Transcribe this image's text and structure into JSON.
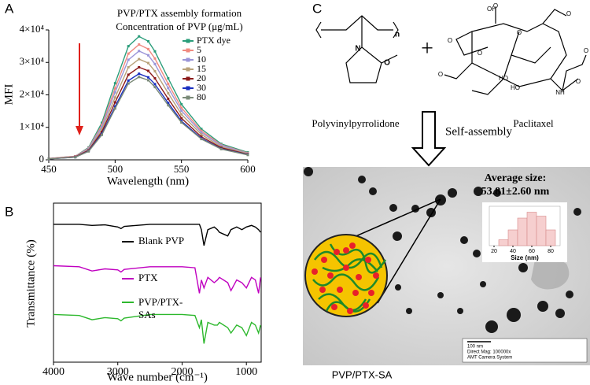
{
  "chart_data": [
    {
      "type": "line",
      "panel_label": "A",
      "title": "PVP/PTX assembly formation",
      "subtitle": "Concentration of PVP (μg/mL)",
      "x_label": "Wavelength (nm)",
      "y_label": "MFI",
      "x": [
        450,
        470,
        480,
        490,
        500,
        510,
        518,
        525,
        530,
        540,
        550,
        565,
        580,
        600
      ],
      "series": [
        {
          "name": "PTX dye",
          "color": "#2a9d7a",
          "values": [
            400,
            1100,
            3800,
            11400,
            23600,
            35000,
            38000,
            36500,
            33400,
            25100,
            17100,
            9500,
            4900,
            2300
          ]
        },
        {
          "name": "5",
          "color": "#f08a80",
          "values": [
            400,
            1100,
            3600,
            10700,
            22000,
            32700,
            35500,
            34100,
            31200,
            23400,
            16000,
            8900,
            4600,
            2100
          ]
        },
        {
          "name": "10",
          "color": "#9a94d8",
          "values": [
            300,
            1000,
            3400,
            10100,
            20800,
            30800,
            33500,
            32200,
            29500,
            22100,
            15100,
            8400,
            4400,
            2000
          ]
        },
        {
          "name": "15",
          "color": "#b8a27a",
          "values": [
            300,
            900,
            3100,
            9300,
            19200,
            28500,
            31000,
            29800,
            27300,
            20500,
            14000,
            7800,
            4000,
            1900
          ]
        },
        {
          "name": "20",
          "color": "#8b1a1a",
          "values": [
            300,
            900,
            2900,
            8600,
            17700,
            26200,
            28500,
            27400,
            25100,
            18800,
            12800,
            7100,
            3700,
            1700
          ]
        },
        {
          "name": "30",
          "color": "#1a2fc0",
          "values": [
            300,
            800,
            2700,
            8000,
            16400,
            24400,
            26500,
            25400,
            23300,
            17500,
            11900,
            6600,
            3400,
            1600
          ]
        },
        {
          "name": "80",
          "color": "#7a8a78",
          "values": [
            300,
            800,
            2600,
            7700,
            15800,
            23500,
            25500,
            24500,
            22400,
            16800,
            11500,
            6400,
            3300,
            1500
          ]
        }
      ],
      "xlim": [
        450,
        600
      ],
      "ylim": [
        0,
        40000
      ],
      "xticks": [
        450,
        500,
        550,
        600
      ],
      "yticks": [
        0,
        {
          "value": 10000,
          "label": "1×10⁴"
        },
        {
          "value": 20000,
          "label": "2×10⁴"
        },
        {
          "value": 30000,
          "label": "3×10⁴"
        },
        {
          "value": 40000,
          "label": "4×10⁴"
        }
      ]
    },
    {
      "type": "line",
      "panel_label": "B",
      "x_label": "Wave number (cm⁻¹)",
      "y_label": "Transmittance (%)",
      "x": [
        4000,
        3600,
        3400,
        3200,
        3000,
        2950,
        2900,
        2500,
        2000,
        1800,
        1730,
        1700,
        1660,
        1600,
        1500,
        1450,
        1420,
        1290,
        1240,
        1150,
        1070,
        1000,
        920,
        860,
        810,
        780
      ],
      "series": [
        {
          "name": "Blank PVP",
          "color": "#000000",
          "values": [
            2.6,
            2.6,
            2.58,
            2.59,
            2.55,
            2.52,
            2.56,
            2.6,
            2.6,
            2.6,
            2.6,
            2.5,
            2.2,
            2.5,
            2.55,
            2.5,
            2.45,
            2.38,
            2.5,
            2.55,
            2.5,
            2.55,
            2.58,
            2.55,
            2.5,
            2.45
          ]
        },
        {
          "name": "PTX",
          "color": "#c000c0",
          "values": [
            1.82,
            1.8,
            1.72,
            1.76,
            1.74,
            1.7,
            1.75,
            1.8,
            1.8,
            1.78,
            1.3,
            1.55,
            1.4,
            1.6,
            1.5,
            1.55,
            1.6,
            1.5,
            1.35,
            1.55,
            1.5,
            1.4,
            1.6,
            1.55,
            1.3,
            1.6
          ]
        },
        {
          "name": "PVP/PTX-SAs",
          "color": "#2db82d",
          "values": [
            0.9,
            0.88,
            0.8,
            0.84,
            0.82,
            0.78,
            0.83,
            0.9,
            0.9,
            0.88,
            0.65,
            0.8,
            0.35,
            0.75,
            0.7,
            0.7,
            0.75,
            0.65,
            0.55,
            0.7,
            0.65,
            0.5,
            0.75,
            0.7,
            0.55,
            0.7
          ]
        }
      ],
      "xlim": [
        4000,
        770
      ],
      "ylim": [
        0,
        3
      ],
      "xticks": [
        4000,
        3000,
        2000,
        1000
      ]
    },
    {
      "type": "histogram",
      "x_label": "Size (nm)",
      "bins": [
        25,
        35,
        45,
        55,
        65,
        75,
        85
      ],
      "values": [
        3,
        8,
        14,
        17,
        15,
        8
      ],
      "color": "#f6cfcf",
      "edge_color": "#d88a8a",
      "xlim": [
        15,
        90
      ],
      "ylim": [
        0,
        20
      ],
      "xticks": [
        20,
        40,
        60,
        80
      ]
    }
  ],
  "panel_c": {
    "label": "C",
    "polymer_name": "Polyvinylpyrrolidone",
    "drug_name": "Paclitaxel",
    "polymer_atoms": [
      "n",
      "N",
      "O"
    ],
    "drug_atoms": [
      "O",
      "O",
      "O",
      "OH",
      "HO",
      "O",
      "O",
      "O",
      "O",
      "HO",
      "NH",
      "O"
    ],
    "plus": "+",
    "step": "Self-assembly",
    "average_size_title": "Average size:",
    "average_size": "53.81±2.60 nm",
    "scale_bar": "100 nm",
    "micrograph_info": [
      "Direct Mag: 100000x",
      "AMT Camera System"
    ],
    "product": "PVP/PTX-SA"
  }
}
